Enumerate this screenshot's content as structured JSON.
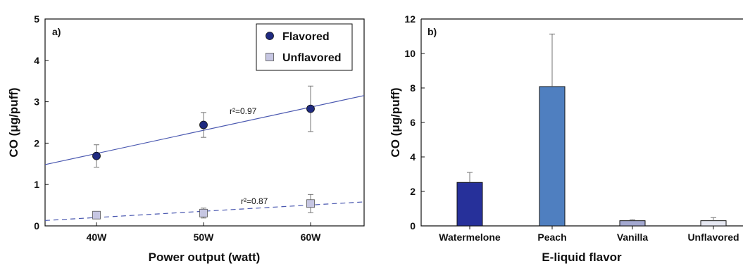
{
  "chart_data": [
    {
      "type": "scatter",
      "panel_label": "a)",
      "xlabel": "Power output (watt)",
      "ylabel": "CO (μg/puff)",
      "categories": [
        "40W",
        "50W",
        "60W"
      ],
      "ylim": [
        0,
        5
      ],
      "yticks": [
        "0",
        "1",
        "2",
        "3",
        "4",
        "5"
      ],
      "legend_position": "top-right",
      "grid": false,
      "series": [
        {
          "name": "Flavored",
          "marker": "circle",
          "color": "#1f2a80",
          "values": [
            1.69,
            2.44,
            2.83
          ],
          "errors": [
            0.27,
            0.3,
            0.55
          ],
          "fit_color": "#4a58b0",
          "fit_style": "solid",
          "fit_line": [
            1.48,
            3.15
          ],
          "r2_label": "r²=0.97"
        },
        {
          "name": "Unflavored",
          "marker": "square",
          "color": "#c6c6e2",
          "values": [
            0.26,
            0.31,
            0.54
          ],
          "errors": [
            0.04,
            0.12,
            0.22
          ],
          "fit_color": "#4a58b0",
          "fit_style": "dashed",
          "fit_line": [
            0.13,
            0.58
          ],
          "r2_label": "r²=0.87"
        }
      ]
    },
    {
      "type": "bar",
      "panel_label": "b)",
      "xlabel": "E-liquid flavor",
      "ylabel": "CO (μg/puff)",
      "categories": [
        "Watermelone",
        "Peach",
        "Vanilla",
        "Unflavored"
      ],
      "values": [
        2.52,
        8.08,
        0.3,
        0.3
      ],
      "errors": [
        0.58,
        3.05,
        0.06,
        0.18
      ],
      "colors": [
        "#26309a",
        "#4f7fc0",
        "#a3a8d0",
        "#e6e8f2"
      ],
      "ylim": [
        0,
        12
      ],
      "yticks": [
        "0",
        "2",
        "4",
        "6",
        "8",
        "10",
        "12"
      ],
      "grid": false
    }
  ]
}
